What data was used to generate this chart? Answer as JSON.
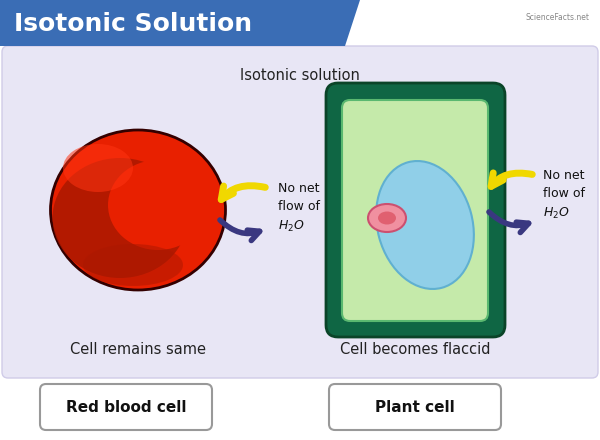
{
  "title": "Isotonic Solution",
  "title_bg_color": "#3a6db5",
  "title_text_color": "#ffffff",
  "main_bg_color": "#ffffff",
  "panel_bg_color": "#e8e6f5",
  "subtitle": "Isotonic solution",
  "left_label": "Cell remains same",
  "right_label": "Cell becomes flaccid",
  "left_badge": "Red blood cell",
  "right_badge": "Plant cell",
  "rbc_outer_color": "#e82000",
  "rbc_dark_color": "#aa1800",
  "rbc_mid_color": "#cc2000",
  "rbc_bright_color": "#ff3311",
  "cell_wall_color": "#0f6644",
  "cell_wall_inner_color": "#1a8855",
  "cytoplasm_color": "#c5eaaa",
  "vacuole_color": "#90cfe8",
  "vacuole_border": "#60b0d0",
  "nucleus_color": "#f090a0",
  "nucleus_inner_color": "#e06070",
  "arrow_yellow": "#f0d800",
  "arrow_yellow_edge": "#c8a800",
  "arrow_purple": "#3a3880",
  "badge_bg": "#ffffff",
  "badge_border": "#999999",
  "panel_border": "#d0cce8"
}
